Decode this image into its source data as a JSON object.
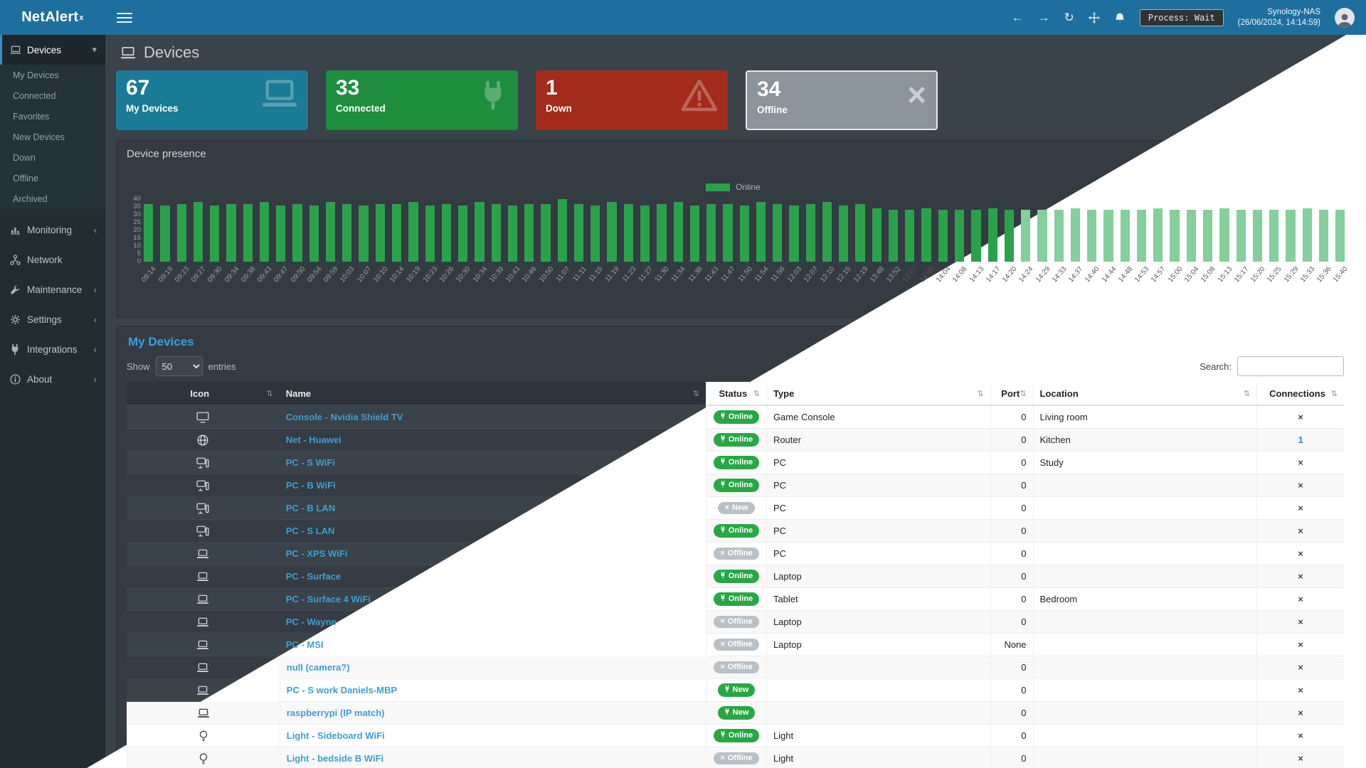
{
  "header": {
    "logo_text": "NetAlert",
    "logo_sup": "x",
    "process_badge": "Process: Wait",
    "host": "Synology-NAS",
    "timestamp": "(26/06/2024, 14:14:59)"
  },
  "ui": {
    "back_icon": "←",
    "forward_icon": "→",
    "refresh_icon": "↻",
    "sort_icon": "⇅",
    "chevron_collapsed": "‹",
    "chevron_expanded": "▾"
  },
  "sidebar": {
    "items": [
      {
        "label": "Devices",
        "icon": "laptop-icon",
        "expanded": true,
        "children": [
          "My Devices",
          "Connected",
          "Favorites",
          "New Devices",
          "Down",
          "Offline",
          "Archived"
        ]
      },
      {
        "label": "Monitoring",
        "icon": "chart-icon"
      },
      {
        "label": "Network",
        "icon": "network-icon"
      },
      {
        "label": "Maintenance",
        "icon": "wrench-icon"
      },
      {
        "label": "Settings",
        "icon": "gear-icon"
      },
      {
        "label": "Integrations",
        "icon": "plug-icon"
      },
      {
        "label": "About",
        "icon": "info-icon"
      }
    ]
  },
  "page": {
    "title": "Devices"
  },
  "tiles": [
    {
      "value": "67",
      "label": "My Devices",
      "color": "#1a7b96",
      "icon": "laptop-icon"
    },
    {
      "value": "33",
      "label": "Connected",
      "color": "#1e8e3e",
      "icon": "plug-icon"
    },
    {
      "value": "1",
      "label": "Down",
      "color": "#a32b1b",
      "icon": "warning-icon"
    },
    {
      "value": "34",
      "label": "Offline",
      "color": "#8b939b",
      "icon": "x-icon"
    }
  ],
  "presence": {
    "title": "Device presence",
    "legend_label": "Online"
  },
  "chart_data": {
    "type": "bar",
    "title": "Device presence",
    "legend": [
      "Online"
    ],
    "legend_position": "top-center",
    "xlabel": "",
    "ylabel": "",
    "ylim": [
      0,
      40
    ],
    "yticks": [
      0,
      5,
      10,
      15,
      20,
      25,
      30,
      35,
      40
    ],
    "grid": false,
    "colors": {
      "bar_dark_zone": "#2aa24b",
      "bar_light_zone": "#84cf9c",
      "legend_swatch": "#2aa24b"
    },
    "x": [
      "09:14",
      "09:19",
      "09:23",
      "09:27",
      "09:30",
      "09:34",
      "09:38",
      "09:43",
      "09:47",
      "09:50",
      "09:54",
      "09:59",
      "10:03",
      "10:07",
      "10:10",
      "10:14",
      "10:19",
      "10:23",
      "10:26",
      "10:30",
      "10:34",
      "10:39",
      "10:43",
      "10:46",
      "10:50",
      "11:07",
      "11:11",
      "11:15",
      "11:19",
      "11:23",
      "11:27",
      "11:30",
      "11:34",
      "11:38",
      "11:43",
      "11:47",
      "11:50",
      "11:54",
      "11:58",
      "12:03",
      "12:07",
      "12:10",
      "12:15",
      "12:19",
      "13:48",
      "13:52",
      "13:57",
      "14:00",
      "14:04",
      "14:08",
      "14:13",
      "14:17",
      "14:20",
      "14:24",
      "14:29",
      "14:33",
      "14:37",
      "14:40",
      "14:44",
      "14:48",
      "14:53",
      "14:57",
      "15:00",
      "15:04",
      "15:08",
      "15:13",
      "15:17",
      "15:20",
      "15:25",
      "15:29",
      "15:33",
      "15:36",
      "15:40"
    ],
    "series": [
      {
        "name": "Online",
        "values": [
          37,
          36,
          37,
          38,
          36,
          37,
          37,
          38,
          36,
          37,
          36,
          38,
          37,
          36,
          37,
          37,
          38,
          36,
          37,
          36,
          38,
          37,
          36,
          37,
          37,
          40,
          37,
          36,
          38,
          37,
          36,
          37,
          38,
          36,
          37,
          37,
          36,
          38,
          37,
          36,
          37,
          38,
          36,
          37,
          34,
          33,
          33,
          34,
          33,
          33,
          33,
          34,
          33,
          33,
          33,
          33,
          34,
          33,
          33,
          33,
          33,
          34,
          33,
          33,
          33,
          34,
          33,
          33,
          33,
          33,
          34,
          33,
          33
        ]
      }
    ]
  },
  "devices_table": {
    "title": "My Devices",
    "show_label": "Show",
    "entries_label": "entries",
    "page_size": "50",
    "search_label": "Search:",
    "columns": [
      "Icon",
      "Name",
      "Status",
      "Type",
      "Port",
      "Location",
      "Connections"
    ],
    "rows": [
      {
        "icon": "tv-icon",
        "name": "Console - Nvidia Shield TV",
        "status": "Online",
        "status_variant": "online",
        "type": "Game Console",
        "port": "0",
        "location": "Living room",
        "connections": "×",
        "connections_is_link": false
      },
      {
        "icon": "globe-icon",
        "name": "Net - Huawei",
        "status": "Online",
        "status_variant": "online",
        "type": "Router",
        "port": "0",
        "location": "Kitchen",
        "connections": "1",
        "connections_is_link": true
      },
      {
        "icon": "desktop-icon",
        "name": "PC - S WiFi",
        "status": "Online",
        "status_variant": "online",
        "type": "PC",
        "port": "0",
        "location": "Study",
        "connections": "×",
        "connections_is_link": false
      },
      {
        "icon": "desktop-icon",
        "name": "PC - B WiFi",
        "status": "Online",
        "status_variant": "online",
        "type": "PC",
        "port": "0",
        "location": "",
        "connections": "×",
        "connections_is_link": false
      },
      {
        "icon": "desktop-icon",
        "name": "PC - B LAN",
        "status": "New",
        "status_variant": "new-offline",
        "type": "PC",
        "port": "0",
        "location": "",
        "connections": "×",
        "connections_is_link": false
      },
      {
        "icon": "desktop-icon",
        "name": "PC - S LAN",
        "status": "Online",
        "status_variant": "online",
        "type": "PC",
        "port": "0",
        "location": "",
        "connections": "×",
        "connections_is_link": false
      },
      {
        "icon": "laptop-icon",
        "name": "PC - XPS WiFi",
        "status": "Offline",
        "status_variant": "offline",
        "type": "PC",
        "port": "0",
        "location": "",
        "connections": "×",
        "connections_is_link": false
      },
      {
        "icon": "laptop-icon",
        "name": "PC - Surface",
        "status": "Online",
        "status_variant": "online",
        "type": "Laptop",
        "port": "0",
        "location": "",
        "connections": "×",
        "connections_is_link": false
      },
      {
        "icon": "laptop-icon",
        "name": "PC - Surface 4 WiFi",
        "status": "Online",
        "status_variant": "online",
        "type": "Tablet",
        "port": "0",
        "location": "Bedroom",
        "connections": "×",
        "connections_is_link": false
      },
      {
        "icon": "laptop-icon",
        "name": "PC - Wayne",
        "status": "Offline",
        "status_variant": "offline",
        "type": "Laptop",
        "port": "0",
        "location": "",
        "connections": "×",
        "connections_is_link": false
      },
      {
        "icon": "laptop-icon",
        "name": "PC - MSI",
        "status": "Offline",
        "status_variant": "offline",
        "type": "Laptop",
        "port": "None",
        "location": "",
        "connections": "×",
        "connections_is_link": false
      },
      {
        "icon": "laptop-icon",
        "name": "null (camera?)",
        "status": "Offline",
        "status_variant": "offline",
        "type": "",
        "port": "0",
        "location": "",
        "connections": "×",
        "connections_is_link": false
      },
      {
        "icon": "laptop-icon",
        "name": "PC - S work Daniels-MBP",
        "status": "New",
        "status_variant": "new-online",
        "type": "",
        "port": "0",
        "location": "",
        "connections": "×",
        "connections_is_link": false
      },
      {
        "icon": "laptop-icon",
        "name": "raspberrypi (IP match)",
        "status": "New",
        "status_variant": "new-online",
        "type": "",
        "port": "0",
        "location": "",
        "connections": "×",
        "connections_is_link": false
      },
      {
        "icon": "bulb-icon",
        "name": "Light - Sideboard WiFi",
        "status": "Online",
        "status_variant": "online",
        "type": "Light",
        "port": "0",
        "location": "",
        "connections": "×",
        "connections_is_link": false
      },
      {
        "icon": "bulb-icon",
        "name": "Light - bedside B WiFi",
        "status": "Offline",
        "status_variant": "offline",
        "type": "Light",
        "port": "0",
        "location": "",
        "connections": "×",
        "connections_is_link": false
      }
    ]
  }
}
